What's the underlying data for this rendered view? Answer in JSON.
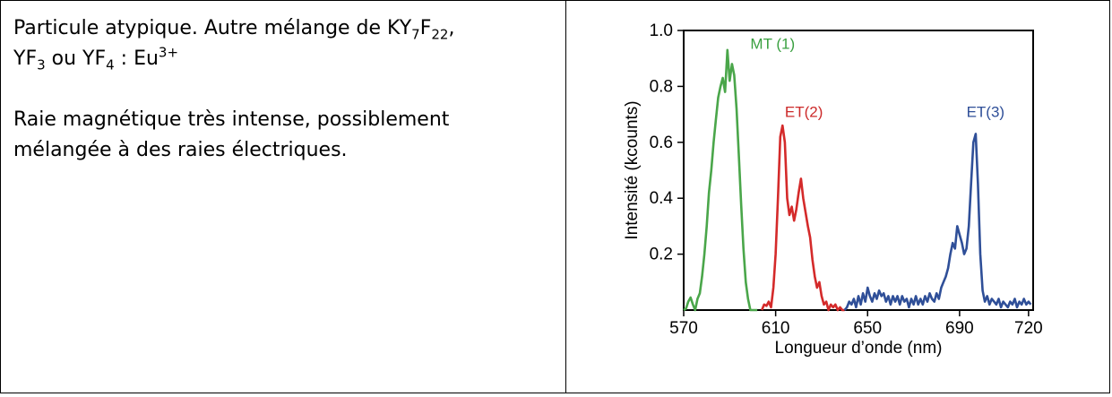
{
  "left_cell": {
    "line1_a": "Particule atypique. Autre mélange de KY",
    "line1_sub1": "7",
    "line1_b": "F",
    "line1_sub2": "22",
    "line1_c": ",",
    "line2_a": "YF",
    "line2_sub1": "3",
    "line2_b": " ou YF",
    "line2_sub2": "4",
    "line2_c": " : Eu",
    "line2_sup": "3+",
    "paragraph2": "Raie magnétique très intense, possiblement mélangée à des raies électriques."
  },
  "chart_data": {
    "type": "line",
    "xlabel": "Longueur d’onde (nm)",
    "ylabel": "Intensité (kcounts)",
    "xlim": [
      570,
      722
    ],
    "ylim": [
      0,
      1.0
    ],
    "xticks": [
      570,
      610,
      650,
      690,
      720
    ],
    "yticks": [
      0.2,
      0.4,
      0.6,
      0.8,
      1.0
    ],
    "ytick_labels": [
      "0.2",
      "0.4",
      "0.6",
      "0.8",
      "1.0"
    ],
    "grid": false,
    "annotations": [
      {
        "text": "MT (1)",
        "x": 599,
        "y": 0.935,
        "color": "#3aa040"
      },
      {
        "text": "ET(2)",
        "x": 614,
        "y": 0.69,
        "color": "#cc2a2a"
      },
      {
        "text": "ET(3)",
        "x": 693,
        "y": 0.69,
        "color": "#2f4f98"
      }
    ],
    "series": [
      {
        "color": "#4aa64a",
        "x": [
          570,
          571,
          572,
          573,
          574,
          575,
          576,
          577,
          578,
          579,
          580,
          581,
          582,
          583,
          584,
          585,
          586,
          587,
          588,
          589,
          590,
          591,
          592,
          593,
          594,
          595,
          596,
          597,
          598,
          599,
          600,
          601,
          602
        ],
        "y": [
          0.0,
          0.005,
          0.03,
          0.045,
          0.02,
          0.0,
          0.04,
          0.06,
          0.12,
          0.2,
          0.3,
          0.42,
          0.5,
          0.6,
          0.68,
          0.76,
          0.8,
          0.83,
          0.78,
          0.93,
          0.82,
          0.88,
          0.84,
          0.72,
          0.55,
          0.38,
          0.22,
          0.1,
          0.04,
          0.0,
          0.0,
          0.0,
          0.0
        ]
      },
      {
        "color": "#d42a2a",
        "x": [
          604,
          605,
          606,
          607,
          608,
          609,
          610,
          611,
          612,
          613,
          614,
          615,
          616,
          617,
          618,
          619,
          620,
          621,
          622,
          623,
          624,
          625,
          626,
          627,
          628,
          629,
          630,
          631,
          632,
          633,
          634,
          635,
          636,
          637,
          638,
          639,
          640
        ],
        "y": [
          0.0,
          0.02,
          0.015,
          0.03,
          0.01,
          0.08,
          0.2,
          0.4,
          0.62,
          0.66,
          0.6,
          0.4,
          0.34,
          0.37,
          0.32,
          0.36,
          0.42,
          0.47,
          0.4,
          0.35,
          0.3,
          0.26,
          0.18,
          0.12,
          0.08,
          0.1,
          0.05,
          0.02,
          0.03,
          0.0,
          0.02,
          0.01,
          0.02,
          0.0,
          0.01,
          0.0,
          0.0
        ]
      },
      {
        "color": "#2f4f98",
        "x": [
          640,
          641,
          642,
          643,
          644,
          645,
          646,
          647,
          648,
          649,
          650,
          651,
          652,
          653,
          654,
          655,
          656,
          657,
          658,
          659,
          660,
          661,
          662,
          663,
          664,
          665,
          666,
          667,
          668,
          669,
          670,
          671,
          672,
          673,
          674,
          675,
          676,
          677,
          678,
          679,
          680,
          681,
          682,
          683,
          684,
          685,
          686,
          687,
          688,
          689,
          690,
          691,
          692,
          693,
          694,
          695,
          696,
          697,
          698,
          699,
          700,
          701,
          702,
          703,
          704,
          705,
          706,
          707,
          708,
          709,
          710,
          711,
          712,
          713,
          714,
          715,
          716,
          717,
          718,
          719,
          720,
          721
        ],
        "y": [
          0.0,
          0.01,
          0.03,
          0.02,
          0.04,
          0.01,
          0.05,
          0.02,
          0.06,
          0.03,
          0.08,
          0.05,
          0.03,
          0.06,
          0.04,
          0.07,
          0.05,
          0.06,
          0.03,
          0.05,
          0.02,
          0.05,
          0.03,
          0.05,
          0.02,
          0.05,
          0.03,
          0.04,
          0.01,
          0.04,
          0.02,
          0.05,
          0.02,
          0.04,
          0.02,
          0.05,
          0.03,
          0.06,
          0.04,
          0.03,
          0.06,
          0.04,
          0.08,
          0.1,
          0.12,
          0.15,
          0.2,
          0.24,
          0.22,
          0.3,
          0.27,
          0.24,
          0.2,
          0.22,
          0.3,
          0.45,
          0.6,
          0.63,
          0.45,
          0.2,
          0.07,
          0.03,
          0.05,
          0.02,
          0.04,
          0.03,
          0.02,
          0.04,
          0.01,
          0.03,
          0.02,
          0.01,
          0.03,
          0.02,
          0.04,
          0.01,
          0.03,
          0.02,
          0.04,
          0.02,
          0.03,
          0.02
        ]
      }
    ]
  }
}
